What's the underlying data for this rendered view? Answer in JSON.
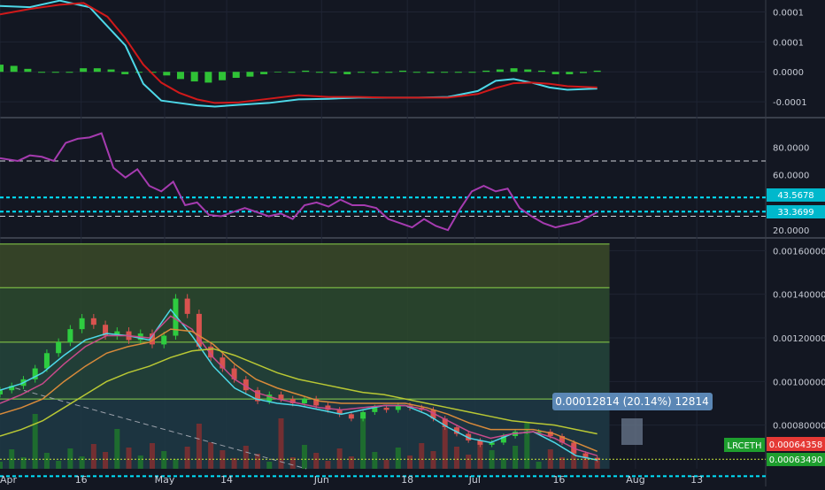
{
  "colors": {
    "background": "#131722",
    "grid": "#1f2433",
    "axis_text": "#c8ccd6",
    "macd_line": "#4dd8e8",
    "signal_line": "#d0191a",
    "hist_pos": "#35e03a",
    "rsi_line": "#a63bb0",
    "level_line": "#00e5ff",
    "up_candle": "#2ecc40",
    "down_candle": "#d9534f",
    "price_tag_bg": "#e53935",
    "symbol_tag_bg": "#1e9e2e",
    "tooltip_bg": "#5b87b5"
  },
  "chart_data": [
    {
      "type": "line",
      "panel": "macd",
      "y_tick_labels": [
        "0.0001",
        "0.0001",
        "0.0000",
        "-0.0001"
      ],
      "y_ticks": [
        0.0001,
        5e-05,
        0.0,
        -5e-05
      ],
      "ylim": [
        -7.5e-05,
        0.00012
      ],
      "series": [
        {
          "key": "macd",
          "x": [
            0,
            5,
            10,
            15,
            18,
            21,
            24,
            27,
            30,
            33,
            36,
            40,
            45,
            50,
            55,
            60,
            65,
            70,
            75,
            80,
            83,
            86,
            89,
            92,
            95,
            100
          ],
          "y": [
            0.00011,
            0.000108,
            0.000119,
            0.000108,
            7.6e-05,
            4.4e-05,
            -2e-05,
            -4.8e-05,
            -5.2e-05,
            -5.6e-05,
            -5.8e-05,
            -5.5e-05,
            -5.2e-05,
            -4.6e-05,
            -4.5e-05,
            -4.3e-05,
            -4.3e-05,
            -4.3e-05,
            -4.2e-05,
            -3.2e-05,
            -1.5e-05,
            -1.2e-05,
            -1.8e-05,
            -2.6e-05,
            -3e-05,
            -2.8e-05
          ]
        },
        {
          "key": "signal",
          "x": [
            0,
            5,
            10,
            14,
            18,
            21,
            24,
            27,
            30,
            33,
            36,
            40,
            45,
            50,
            55,
            60,
            65,
            70,
            75,
            80,
            83,
            86,
            89,
            92,
            95,
            100
          ],
          "y": [
            9.6e-05,
            0.000105,
            0.000112,
            0.000115,
            9.2e-05,
            5.6e-05,
            1.2e-05,
            -1.8e-05,
            -3.5e-05,
            -4.6e-05,
            -5.2e-05,
            -5.1e-05,
            -4.5e-05,
            -3.9e-05,
            -4.2e-05,
            -4.2e-05,
            -4.3e-05,
            -4.3e-05,
            -4.3e-05,
            -3.7e-05,
            -2.7e-05,
            -1.9e-05,
            -1.8e-05,
            -2e-05,
            -2.4e-05,
            -2.6e-05
          ]
        }
      ],
      "histogram": [
        1.2e-05,
        1e-05,
        5e-06,
        0.0,
        0.0,
        0.0,
        6e-06,
        6e-06,
        4e-06,
        -4e-06,
        0.0,
        0.0,
        -6e-06,
        -1.2e-05,
        -1.6e-05,
        -1.8e-05,
        -1.4e-05,
        -1e-05,
        -8e-06,
        -4e-06,
        -1e-06,
        0.0,
        2e-06,
        0.0,
        -2e-06,
        -4e-06,
        0.0,
        -2e-06,
        0.0,
        2e-06,
        0.0,
        -2e-06,
        0.0,
        0.0,
        0.0,
        2e-06,
        4e-06,
        6e-06,
        4e-06,
        2e-06,
        -4e-06,
        -4e-06,
        -2e-06,
        2e-06
      ]
    },
    {
      "type": "line",
      "panel": "rsi",
      "y_tick_labels": [
        "80.0000",
        "60.0000",
        "20.0000"
      ],
      "y_ticks": [
        80,
        60,
        20
      ],
      "ylim": [
        15,
        100
      ],
      "levels": [
        70,
        30
      ],
      "level_labels": [
        "43.5678",
        "33.3699"
      ],
      "level_values": [
        43.5678,
        33.3699
      ],
      "series": [
        {
          "key": "rsi",
          "x": [
            0,
            3,
            5,
            7,
            9,
            11,
            13,
            15,
            17,
            19,
            21,
            23,
            25,
            27,
            29,
            31,
            33,
            35,
            37,
            39,
            41,
            43,
            45,
            47,
            49,
            51,
            53,
            55,
            57,
            59,
            61,
            63,
            65,
            67,
            69,
            71,
            73,
            75,
            77,
            79,
            81,
            83,
            85,
            87,
            89,
            91,
            93,
            95,
            97,
            100
          ],
          "y": [
            72,
            70,
            74,
            73,
            70,
            83,
            86,
            87,
            90,
            65,
            58,
            64,
            52,
            48,
            55,
            38,
            40,
            31,
            30,
            33,
            36,
            33,
            30,
            32,
            28,
            38,
            40,
            37,
            42,
            38,
            38,
            36,
            28,
            25,
            22,
            28,
            23,
            20,
            35,
            48,
            52,
            48,
            50,
            36,
            30,
            25,
            22,
            24,
            26,
            33
          ]
        }
      ]
    },
    {
      "type": "candlestick",
      "panel": "price",
      "symbol": "LRCETH",
      "price_tag": "0.00064358",
      "price_tag_value": 0.00064358,
      "second_tag": "0.00063490",
      "second_tag_value": 0.0006349,
      "tooltip": "0.00012814 (20.14%) 12814",
      "y_tick_labels": [
        "0.00160000",
        "0.00140000",
        "0.00120000",
        "0.00100000",
        "0.00080000"
      ],
      "y_ticks": [
        0.0016,
        0.0014,
        0.0012,
        0.001,
        0.0008
      ],
      "ylim": [
        0.0006,
        0.00165
      ],
      "fib_levels": [
        0.00163,
        0.00143,
        0.00118,
        0.00092
      ],
      "x_tick_labels": [
        "Apr",
        "16",
        "May",
        "14",
        "Jun",
        "18",
        "Jul",
        "16",
        "Aug",
        "13"
      ],
      "x_ticks": [
        0.0,
        10.6,
        21.5,
        29.6,
        42.0,
        53.2,
        62.0,
        73.0,
        83.0,
        91.0
      ],
      "moving_averages": [
        {
          "key": "ma_short",
          "y": [
            0.00096,
            0.00099,
            0.00104,
            0.00112,
            0.00119,
            0.00122,
            0.00121,
            0.00119,
            0.00133,
            0.00121,
            0.00107,
            0.00097,
            0.00092,
            0.0009,
            0.00089,
            0.00087,
            0.00085,
            0.00087,
            0.00089,
            0.00089,
            0.00085,
            0.00079,
            0.00074,
            0.00072,
            0.00076,
            0.00077,
            0.00072,
            0.00066,
            0.00064
          ]
        },
        {
          "key": "ma_mid",
          "y": [
            0.0009,
            0.00094,
            0.00099,
            0.00108,
            0.00116,
            0.00121,
            0.00121,
            0.0012,
            0.0013,
            0.00124,
            0.00111,
            0.00101,
            0.00095,
            0.00092,
            0.0009,
            0.00088,
            0.00087,
            0.00088,
            0.00089,
            0.00089,
            0.00087,
            0.00082,
            0.00077,
            0.00074,
            0.00076,
            0.00077,
            0.00074,
            0.00069,
            0.00066
          ]
        },
        {
          "key": "ma_long",
          "y": [
            0.00085,
            0.00088,
            0.00092,
            0.001,
            0.00107,
            0.00113,
            0.00116,
            0.00118,
            0.00124,
            0.00123,
            0.00117,
            0.00108,
            0.00101,
            0.00097,
            0.00094,
            0.00091,
            0.0009,
            0.0009,
            0.0009,
            0.0009,
            0.00088,
            0.00085,
            0.00081,
            0.00078,
            0.00078,
            0.00078,
            0.00076,
            0.00072,
            0.00068
          ]
        },
        {
          "key": "ma_slow",
          "y": [
            0.00075,
            0.00078,
            0.00082,
            0.00088,
            0.00094,
            0.001,
            0.00104,
            0.00107,
            0.00111,
            0.00114,
            0.00115,
            0.00112,
            0.00108,
            0.00104,
            0.00101,
            0.00099,
            0.00097,
            0.00095,
            0.00094,
            0.00092,
            0.0009,
            0.00088,
            0.00086,
            0.00084,
            0.00082,
            0.00081,
            0.0008,
            0.00078,
            0.00076
          ]
        }
      ],
      "closes": [
        0.00096,
        0.00098,
        0.00101,
        0.00106,
        0.00113,
        0.00118,
        0.00124,
        0.00129,
        0.00126,
        0.00121,
        0.00123,
        0.00119,
        0.00122,
        0.00117,
        0.00121,
        0.00138,
        0.00131,
        0.00116,
        0.00111,
        0.00106,
        0.00101,
        0.00096,
        0.00091,
        0.00094,
        0.00092,
        0.0009,
        0.00092,
        0.00089,
        0.00087,
        0.00085,
        0.00083,
        0.00086,
        0.00088,
        0.00087,
        0.00089,
        0.00088,
        0.00087,
        0.00083,
        0.00079,
        0.00076,
        0.00073,
        0.00071,
        0.00072,
        0.00075,
        0.00077,
        0.00077,
        0.00077,
        0.00075,
        0.00072,
        0.00067,
        0.00065,
        0.00064
      ]
    }
  ]
}
